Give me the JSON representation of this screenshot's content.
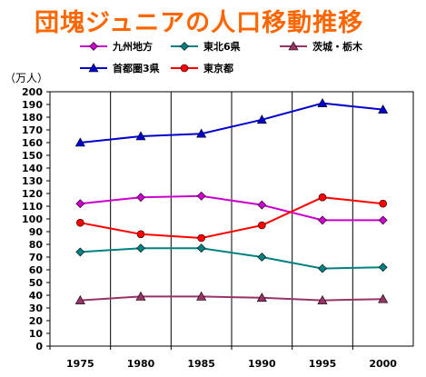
{
  "chart_data": {
    "type": "line",
    "title": "団塊ジュニアの人口移動推移",
    "ylabel": "（万人）",
    "xlabel": "",
    "x": [
      "1975",
      "1980",
      "1985",
      "1990",
      "1995",
      "2000"
    ],
    "ylim": [
      0,
      200
    ],
    "ytick_step": 10,
    "grid": "vertical",
    "legend_position": "top",
    "title_color": "#FF6600",
    "series": [
      {
        "name": "九州地方",
        "color": "#CC00CC",
        "marker": "diamond",
        "values": [
          112,
          117,
          118,
          111,
          99,
          99
        ]
      },
      {
        "name": "東北6県",
        "color": "#008080",
        "marker": "diamond",
        "values": [
          74,
          77,
          77,
          70,
          61,
          62
        ]
      },
      {
        "name": "茨城・栃木",
        "color": "#993366",
        "marker": "triangle",
        "values": [
          36,
          39,
          39,
          38,
          36,
          37
        ]
      },
      {
        "name": "首都圏3県",
        "color": "#0000CC",
        "marker": "triangle",
        "values": [
          160,
          165,
          167,
          178,
          191,
          186
        ]
      },
      {
        "name": "東京都",
        "color": "#FF0000",
        "marker": "circle",
        "values": [
          97,
          88,
          85,
          95,
          117,
          112
        ]
      }
    ]
  }
}
